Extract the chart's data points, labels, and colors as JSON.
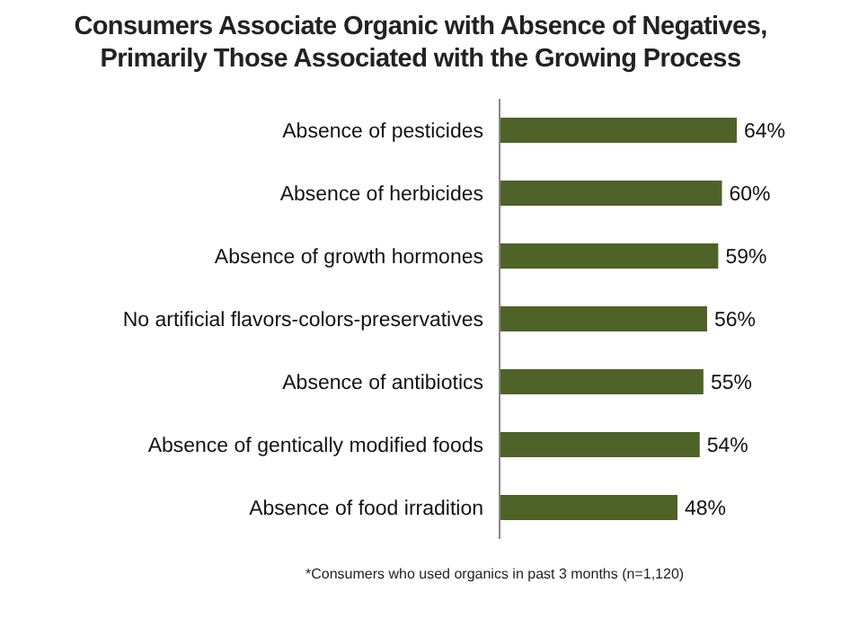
{
  "chart_data": {
    "type": "bar",
    "orientation": "horizontal",
    "title": "Consumers Associate Organic with Absence of Negatives,\nPrimarily Those Associated with the Growing Process",
    "categories": [
      "Absence of pesticides",
      "Absence of herbicides",
      "Absence of growth hormones",
      "No artificial flavors-colors-preservatives",
      "Absence of antibiotics",
      "Absence of gentically modified foods",
      "Absence of food irradition"
    ],
    "values": [
      64,
      60,
      59,
      56,
      55,
      54,
      48
    ],
    "value_labels": [
      "64%",
      "60%",
      "59%",
      "56%",
      "55%",
      "54%",
      "48%"
    ],
    "color": "#4f6228",
    "annotations": [
      "*Consumers who used organics in past 3 months (n=1,120)"
    ]
  }
}
